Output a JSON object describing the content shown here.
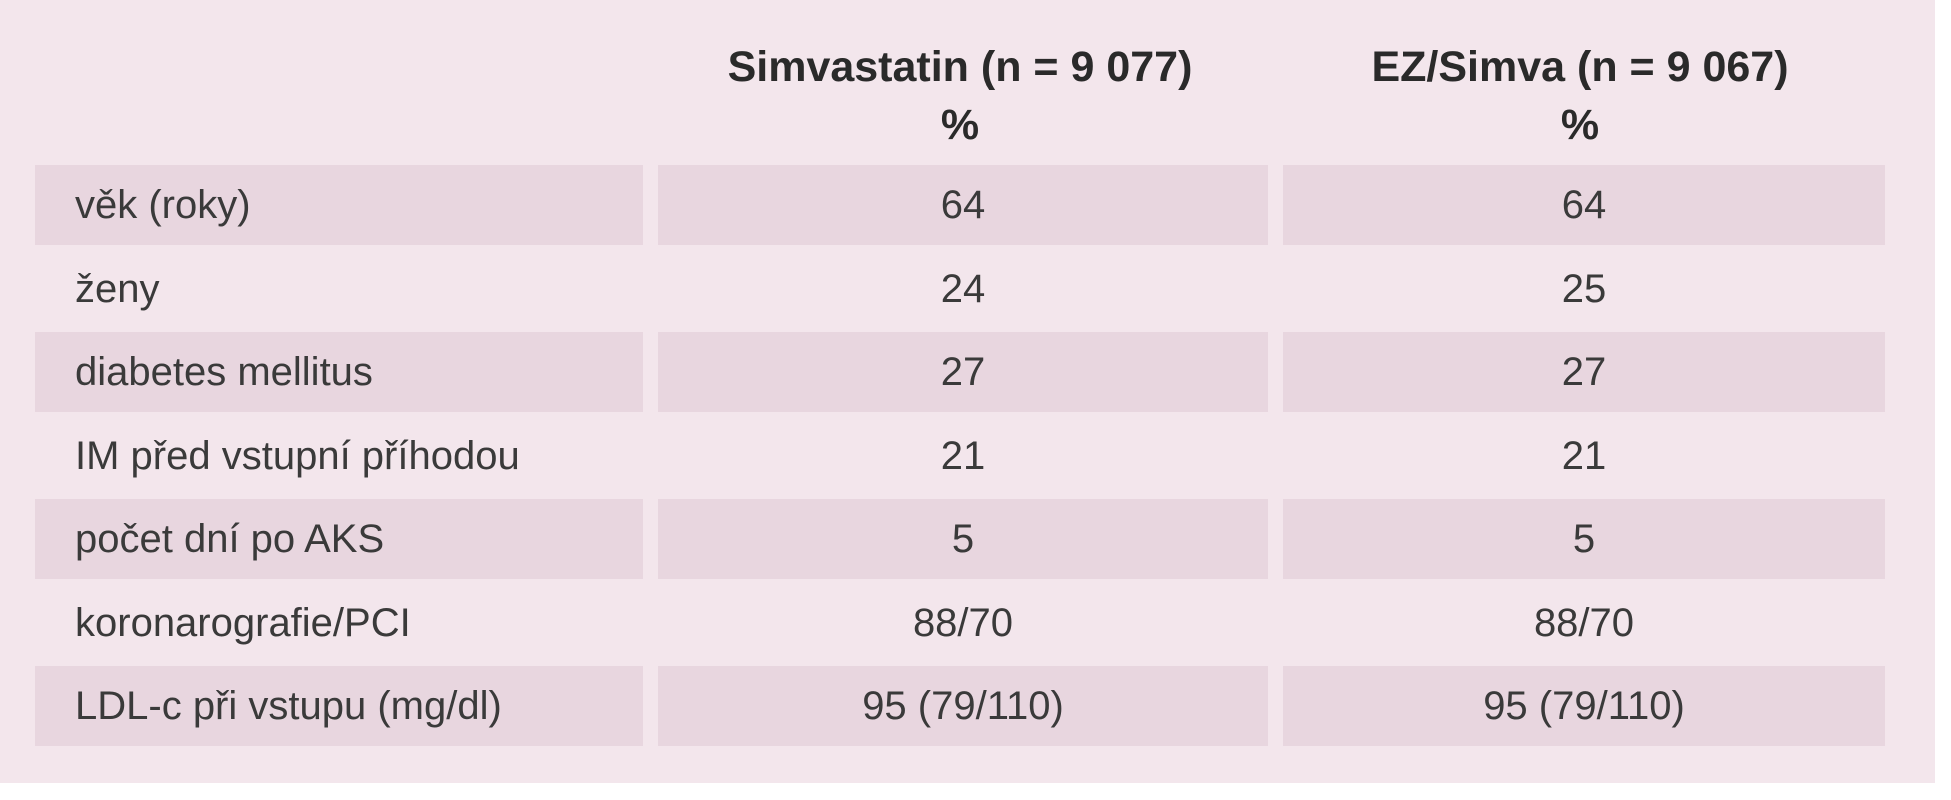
{
  "table": {
    "headers": [
      {
        "title": "Simvastatin (n = 9 077)",
        "unit": "%"
      },
      {
        "title": "EZ/Simva (n = 9 067)",
        "unit": "%"
      }
    ],
    "rows": [
      {
        "label": "věk (roky)",
        "values": [
          "64",
          "64"
        ]
      },
      {
        "label": "ženy",
        "values": [
          "24",
          "25"
        ]
      },
      {
        "label": "diabetes mellitus",
        "values": [
          "27",
          "27"
        ]
      },
      {
        "label": "IM před vstupní příhodou",
        "values": [
          "21",
          "21"
        ]
      },
      {
        "label": "počet dní po AKS",
        "values": [
          "5",
          "5"
        ]
      },
      {
        "label": "koronarografie/PCI",
        "values": [
          "88/70",
          "88/70"
        ]
      },
      {
        "label": "LDL-c při vstupu (mg/dl)",
        "values": [
          "95 (79/110)",
          "95 (79/110)"
        ]
      }
    ]
  },
  "colors": {
    "panel_background": "#f3e6ec",
    "shaded_row": "#e8d6df",
    "text": "#3a3a3a"
  }
}
